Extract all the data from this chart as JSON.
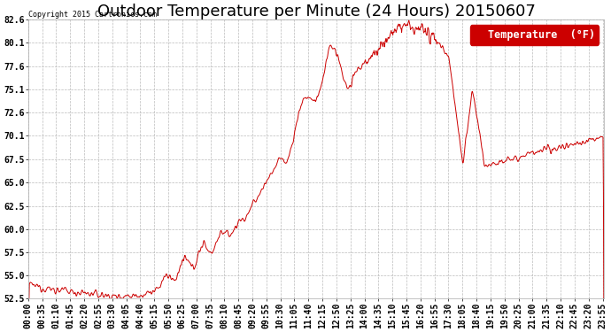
{
  "title": "Outdoor Temperature per Minute (24 Hours) 20150607",
  "copyright": "Copyright 2015 Cartronics.com",
  "legend_label": "Temperature  (°F)",
  "background_color": "#ffffff",
  "plot_bg_color": "#ffffff",
  "line_color": "#cc0000",
  "legend_bg": "#cc0000",
  "legend_fg": "#ffffff",
  "yticks": [
    52.5,
    55.0,
    57.5,
    60.0,
    62.5,
    65.0,
    67.5,
    70.1,
    72.6,
    75.1,
    77.6,
    80.1,
    82.6
  ],
  "ylim": [
    52.5,
    82.6
  ],
  "grid_color": "#bbbbbb",
  "title_fontsize": 13,
  "tick_label_fontsize": 7,
  "xtick_interval": 35
}
